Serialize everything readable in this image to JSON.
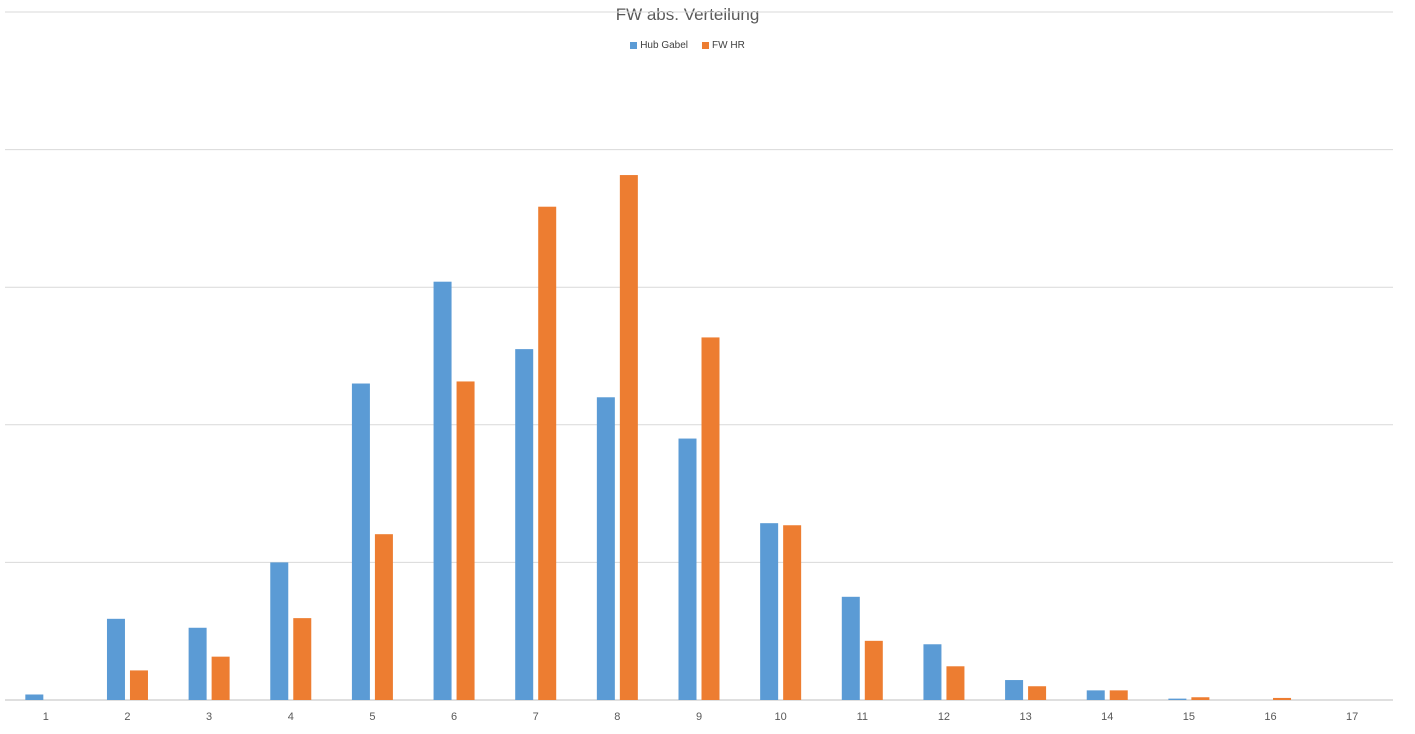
{
  "chart_data": {
    "type": "bar",
    "title": "FW abs. Verteilung",
    "xlabel": "",
    "ylabel": "",
    "categories": [
      "1",
      "2",
      "3",
      "4",
      "5",
      "6",
      "7",
      "8",
      "9",
      "10",
      "11",
      "12",
      "13",
      "14",
      "15",
      "16",
      "17"
    ],
    "series": [
      {
        "name": "Hub Gabel",
        "color": "#5B9BD5",
        "values": [
          0.08,
          1.18,
          1.05,
          2.0,
          4.6,
          6.08,
          5.1,
          4.4,
          3.8,
          2.57,
          1.5,
          0.81,
          0.29,
          0.14,
          0.02,
          0,
          0
        ]
      },
      {
        "name": "FW HR",
        "color": "#ED7D31",
        "values": [
          0,
          0.43,
          0.63,
          1.19,
          2.41,
          4.63,
          7.17,
          7.63,
          5.27,
          2.54,
          0.86,
          0.49,
          0.2,
          0.14,
          0.04,
          0.03,
          0
        ]
      }
    ],
    "ylim": [
      0,
      10
    ],
    "grid": true,
    "legend": "top"
  }
}
